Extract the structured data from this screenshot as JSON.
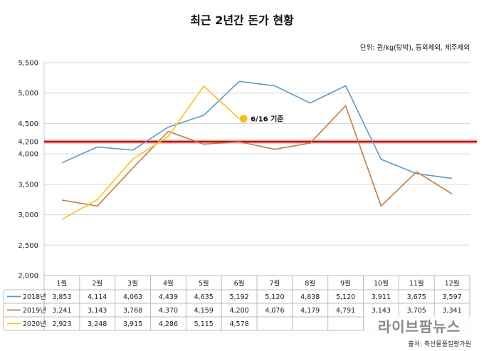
{
  "chart_data": {
    "type": "line",
    "title": "최근 2년간 돈가 현황",
    "unit_note": "단위: 원/kg(탕박), 등외제외, 제주제외",
    "categories": [
      "1월",
      "2월",
      "3월",
      "4월",
      "5월",
      "6월",
      "7월",
      "8월",
      "9월",
      "10월",
      "11월",
      "12월"
    ],
    "ylim": [
      2000,
      5500
    ],
    "yticks": [
      "2,000",
      "2,500",
      "3,000",
      "3,500",
      "4,000",
      "4,200",
      "4,500",
      "5,000",
      "5,500"
    ],
    "ytick_values": [
      2000,
      2500,
      3000,
      3500,
      4000,
      4200,
      4500,
      5000,
      5500
    ],
    "reference_line": {
      "value": 4200,
      "label": "4,200",
      "color": "#c00000"
    },
    "annotation": {
      "label": "6/16 기준",
      "point_value": 4578,
      "category": "6월",
      "color": "#f0c020"
    },
    "series": [
      {
        "name": "2018년",
        "color": "#5b9bc5",
        "values": [
          3853,
          4114,
          4063,
          4439,
          4635,
          5192,
          5120,
          4838,
          5120,
          3911,
          3675,
          3597
        ],
        "labels": [
          "3,853",
          "4,114",
          "4,063",
          "4,439",
          "4,635",
          "5,192",
          "5,120",
          "4,838",
          "5,120",
          "3,911",
          "3,675",
          "3,597"
        ]
      },
      {
        "name": "2019년",
        "color": "#c07d43",
        "values": [
          3241,
          3143,
          3768,
          4370,
          4159,
          4200,
          4076,
          4179,
          4791,
          3143,
          3705,
          3341
        ],
        "labels": [
          "3,241",
          "3,143",
          "3,768",
          "4,370",
          "4,159",
          "4,200",
          "4,076",
          "4,179",
          "4,791",
          "3,143",
          "3,705",
          "3,341"
        ]
      },
      {
        "name": "2020년",
        "color": "#f5c518",
        "values": [
          2923,
          3248,
          3915,
          4286,
          5115,
          4578,
          null,
          null,
          null,
          null,
          null,
          null
        ],
        "labels": [
          "2,923",
          "3,248",
          "3,915",
          "4,286",
          "5,115",
          "4,578",
          "",
          "",
          "",
          "",
          "",
          ""
        ]
      }
    ],
    "grid": true,
    "legend": "table-left"
  },
  "watermark": "라이브팜뉴스",
  "source": "출처: 축산물품질평가원"
}
